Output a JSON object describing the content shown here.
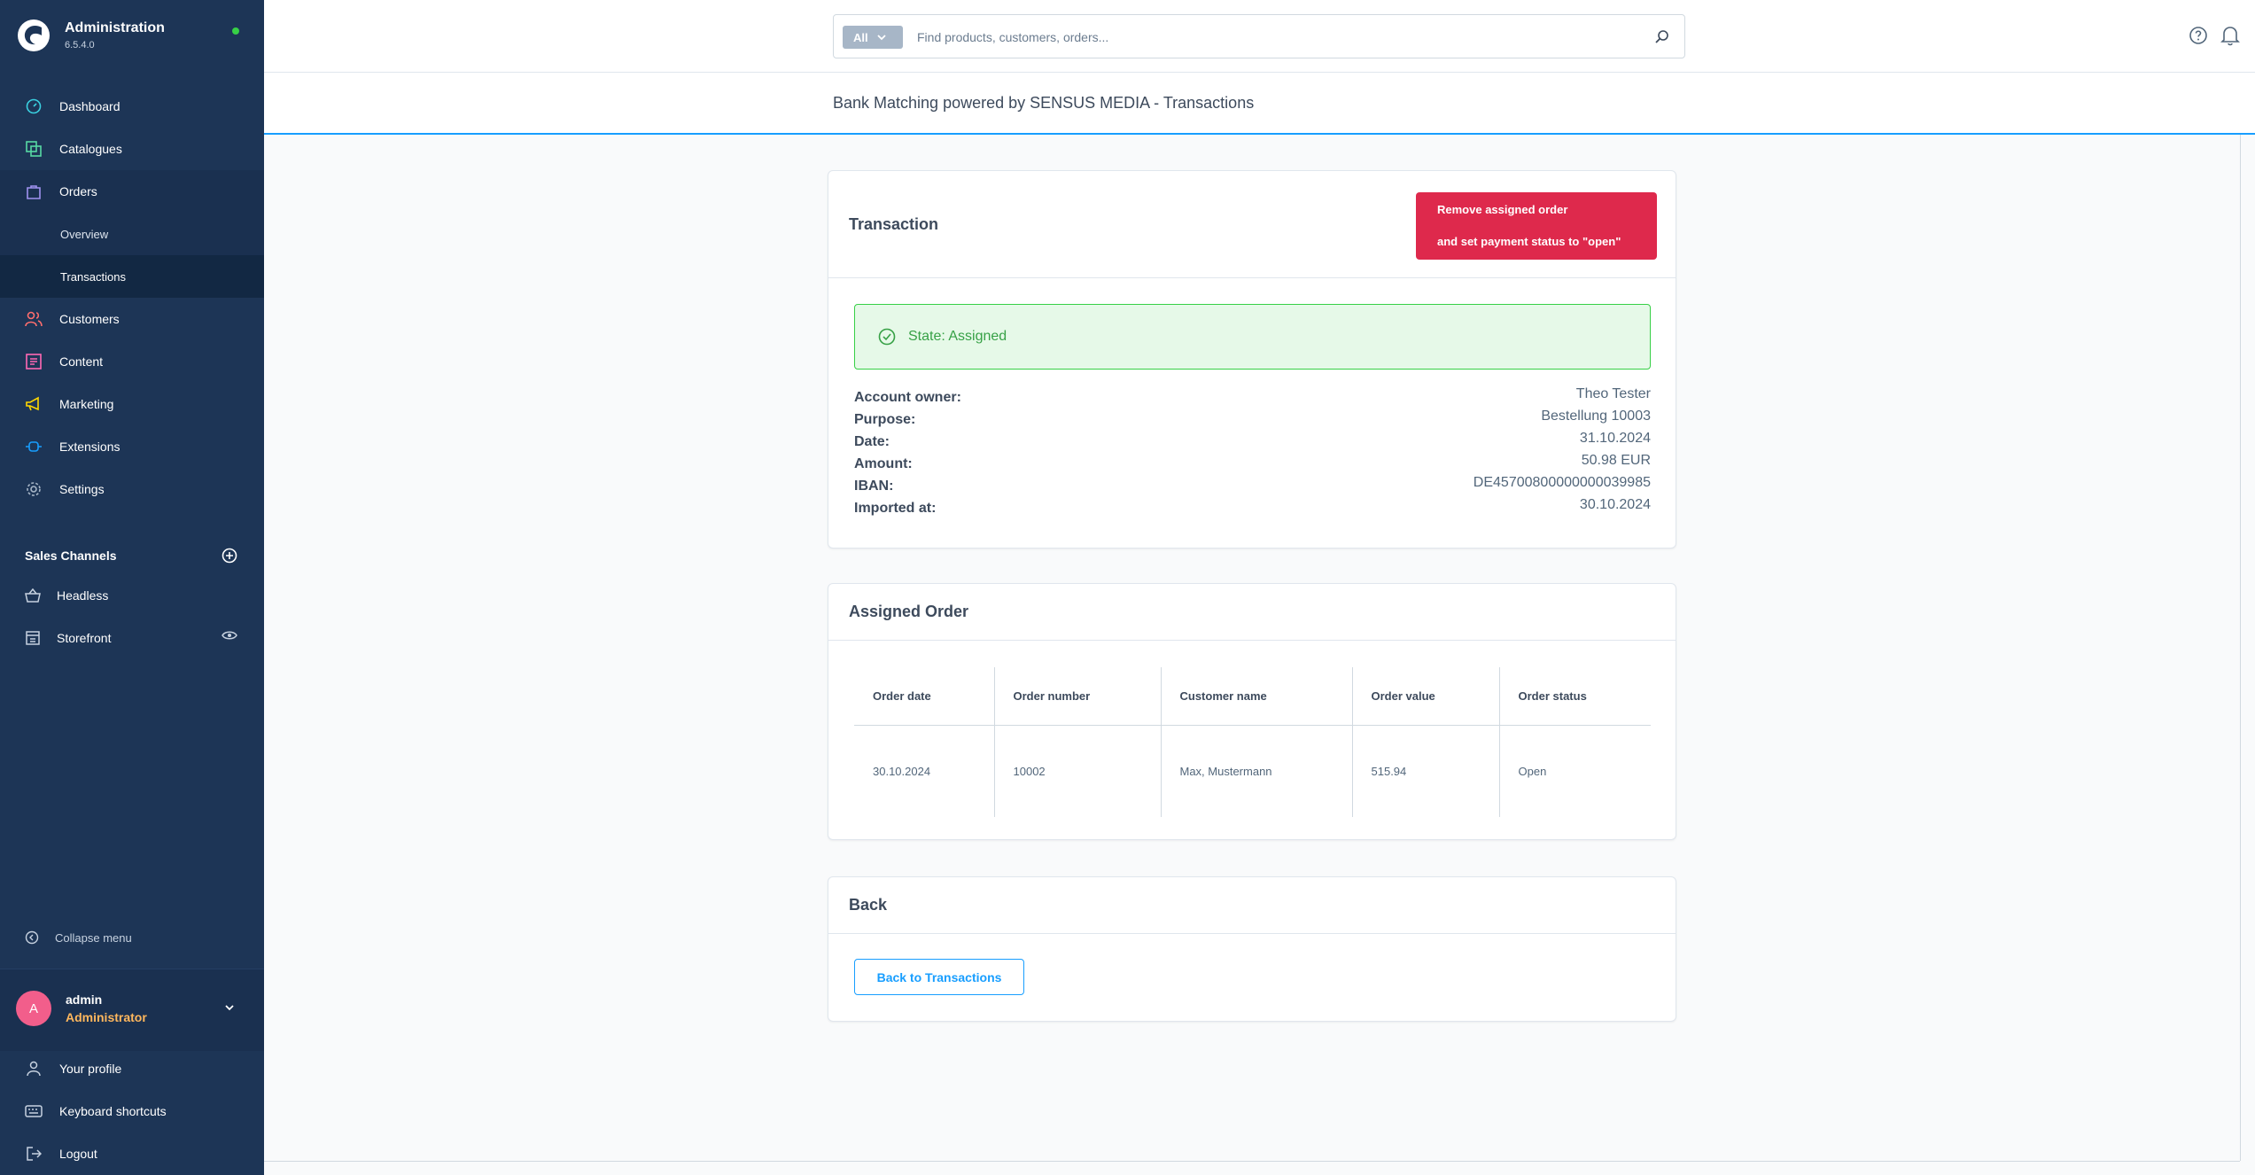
{
  "app": {
    "title": "Administration",
    "version": "6.5.4.0"
  },
  "nav": {
    "dashboard": "Dashboard",
    "catalogues": "Catalogues",
    "orders": "Orders",
    "overview": "Overview",
    "transactions": "Transactions",
    "customers": "Customers",
    "content": "Content",
    "marketing": "Marketing",
    "extensions": "Extensions",
    "settings": "Settings"
  },
  "sales_channels": {
    "header": "Sales Channels",
    "items": [
      "Headless",
      "Storefront"
    ]
  },
  "collapse_label": "Collapse menu",
  "user": {
    "initial": "A",
    "name": "admin",
    "role": "Administrator"
  },
  "bottom_nav": {
    "profile": "Your profile",
    "shortcuts": "Keyboard shortcuts",
    "logout": "Logout"
  },
  "search": {
    "type": "All",
    "placeholder": "Find products, customers, orders..."
  },
  "page_title": "Bank Matching powered by SENSUS MEDIA - Transactions",
  "transaction": {
    "title": "Transaction",
    "remove_line1": "Remove assigned order",
    "remove_line2": "and set payment status to \"open\"",
    "state": "State: Assigned",
    "fields": [
      {
        "label": "Account owner:",
        "value": "Theo Tester"
      },
      {
        "label": "Purpose:",
        "value": "Bestellung 10003"
      },
      {
        "label": "Date:",
        "value": "31.10.2024"
      },
      {
        "label": "Amount:",
        "value": "50.98 EUR"
      },
      {
        "label": "IBAN:",
        "value": "DE45700800000000039985"
      },
      {
        "label": "Imported at:",
        "value": "30.10.2024"
      }
    ]
  },
  "assigned_order": {
    "title": "Assigned Order",
    "columns": [
      "Order date",
      "Order number",
      "Customer name",
      "Order value",
      "Order status"
    ],
    "row": [
      "30.10.2024",
      "10002",
      "Max, Mustermann",
      "515.94",
      "Open"
    ]
  },
  "back": {
    "title": "Back",
    "button": "Back to Transactions"
  },
  "colors": {
    "sidebar": "#1d3556",
    "accent": "#189eff",
    "danger": "#de294c",
    "success": "#37d046",
    "role": "#ffb75d"
  }
}
